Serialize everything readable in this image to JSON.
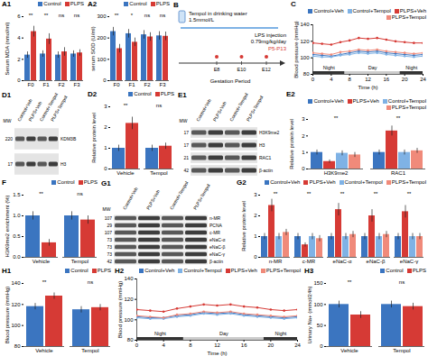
{
  "chart_data": [
    {
      "panel": "A1",
      "type": "bar",
      "y_label": "Serum MDA (nmol/ml)",
      "categories": [
        "F0",
        "F1",
        "F2",
        "F3"
      ],
      "series": [
        {
          "name": "Control",
          "color": "#3b75c0",
          "values": [
            2.4,
            2.5,
            2.4,
            2.5
          ],
          "errors": [
            0.3,
            0.3,
            0.3,
            0.3
          ]
        },
        {
          "name": "PLPS",
          "color": "#d63a35",
          "values": [
            4.6,
            3.9,
            2.7,
            2.6
          ],
          "errors": [
            0.5,
            0.5,
            0.4,
            0.3
          ]
        }
      ],
      "significance": [
        "**",
        "**",
        "ns",
        "ns"
      ],
      "ylim": [
        0,
        6
      ],
      "yticks": [
        0,
        2,
        4,
        6
      ],
      "legend": "top-right"
    },
    {
      "panel": "A2",
      "type": "bar",
      "y_label": "serum SOD (U/ml)",
      "categories": [
        "F0",
        "F1",
        "F2",
        "F3"
      ],
      "series": [
        {
          "name": "Control",
          "color": "#3b75c0",
          "values": [
            230,
            220,
            215,
            210
          ],
          "errors": [
            20,
            20,
            20,
            20
          ]
        },
        {
          "name": "PLPS",
          "color": "#d63a35",
          "values": [
            150,
            180,
            205,
            208
          ],
          "errors": [
            20,
            20,
            20,
            20
          ]
        }
      ],
      "significance": [
        "**",
        "*",
        "ns",
        "ns"
      ],
      "ylim": [
        0,
        300
      ],
      "yticks": [
        0,
        100,
        200,
        300
      ],
      "legend": "top-right"
    },
    {
      "panel": "C",
      "type": "line",
      "y_label": "Blood pressure (mmHg)",
      "x_label": "Time (h)",
      "x": [
        0,
        2,
        4,
        6,
        8,
        10,
        12,
        14,
        16,
        18,
        20,
        22,
        24
      ],
      "series": [
        {
          "name": "Control+Veh",
          "color": "#3b75c0",
          "values": [
            104,
            103,
            102,
            104,
            106,
            108,
            107,
            108,
            106,
            105,
            104,
            103,
            104
          ]
        },
        {
          "name": "Control+Tempol",
          "color": "#7fb2e5",
          "values": [
            102,
            101,
            101,
            103,
            104,
            106,
            105,
            106,
            104,
            103,
            102,
            101,
            102
          ]
        },
        {
          "name": "PLPS+Veh",
          "color": "#d63a35",
          "values": [
            118,
            117,
            116,
            119,
            121,
            124,
            123,
            124,
            122,
            120,
            119,
            118,
            118
          ]
        },
        {
          "name": "PLPS+Tempol",
          "color": "#f08a7a",
          "values": [
            106,
            105,
            104,
            107,
            108,
            110,
            109,
            110,
            108,
            107,
            106,
            105,
            106
          ]
        }
      ],
      "periods": [
        {
          "label": "Night",
          "from": 0,
          "to": 7
        },
        {
          "label": "Day",
          "from": 7,
          "to": 19
        },
        {
          "label": "Night",
          "from": 19,
          "to": 24
        }
      ],
      "xlim": [
        0,
        24
      ],
      "xticks": [
        0,
        4,
        8,
        12,
        16,
        20,
        24
      ],
      "ylim": [
        80,
        140
      ],
      "yticks": [
        80,
        100,
        120,
        140
      ],
      "marker": "circle",
      "legend": "top"
    },
    {
      "panel": "D2",
      "type": "bar",
      "y_label": "Relative protein level",
      "categories": [
        "Vehicle",
        "Tempol"
      ],
      "series": [
        {
          "name": "Control",
          "color": "#3b75c0",
          "values": [
            1.0,
            1.0
          ],
          "errors": [
            0.15,
            0.15
          ]
        },
        {
          "name": "PLPS",
          "color": "#d63a35",
          "values": [
            2.2,
            1.1
          ],
          "errors": [
            0.3,
            0.15
          ]
        }
      ],
      "significance": [
        "**",
        "ns"
      ],
      "ylim": [
        0,
        3
      ],
      "yticks": [
        0,
        1,
        2,
        3
      ],
      "legend": "top-right"
    },
    {
      "panel": "E2",
      "type": "bar",
      "y_label": "Relative protein level",
      "categories": [
        "H3K9me2",
        "RAC1"
      ],
      "series": [
        {
          "name": "Control+Veh",
          "color": "#3b75c0",
          "values": [
            1.0,
            1.0
          ],
          "errors": [
            0.15,
            0.15
          ]
        },
        {
          "name": "PLPS+Veh",
          "color": "#d63a35",
          "values": [
            0.45,
            2.3
          ],
          "errors": [
            0.1,
            0.3
          ]
        },
        {
          "name": "Control+Tempol",
          "color": "#7fb2e5",
          "values": [
            0.95,
            1.0
          ],
          "errors": [
            0.15,
            0.15
          ]
        },
        {
          "name": "PLPS+Tempol",
          "color": "#f08a7a",
          "values": [
            0.85,
            1.1
          ],
          "errors": [
            0.15,
            0.15
          ]
        }
      ],
      "significance": [
        "**",
        "**"
      ],
      "ylim": [
        0,
        3
      ],
      "yticks": [
        0,
        1,
        2,
        3
      ],
      "legend": "top-right"
    },
    {
      "panel": "F",
      "type": "bar",
      "y_label": "H3K9me2 enrichment (%)",
      "categories": [
        "Vehicle",
        "Tempol"
      ],
      "series": [
        {
          "name": "Control",
          "color": "#3b75c0",
          "values": [
            1.0,
            1.0
          ],
          "errors": [
            0.1,
            0.1
          ]
        },
        {
          "name": "PLPS",
          "color": "#d63a35",
          "values": [
            0.35,
            0.9
          ],
          "errors": [
            0.08,
            0.1
          ]
        }
      ],
      "significance": [
        "**",
        "ns"
      ],
      "ylim": [
        0,
        1.5
      ],
      "yticks": [
        {
          "value": 0,
          "label": "0.0"
        },
        {
          "value": 0.5,
          "label": "0.5"
        },
        {
          "value": 1,
          "label": "1.0"
        },
        {
          "value": 1.5,
          "label": "1.5"
        }
      ],
      "legend": "top-right"
    },
    {
      "panel": "G2",
      "type": "bar",
      "y_label": "Relative protein level",
      "categories": [
        "n-MR",
        "c-MR",
        "eNaC-α",
        "eNaC-β",
        "eNaC-γ"
      ],
      "series": [
        {
          "name": "Control+Veh",
          "color": "#3b75c0",
          "values": [
            1.0,
            1.0,
            1.0,
            1.0,
            1.0
          ],
          "errors": [
            0.15,
            0.15,
            0.15,
            0.15,
            0.15
          ]
        },
        {
          "name": "PLPS+Veh",
          "color": "#d63a35",
          "values": [
            2.5,
            0.6,
            2.3,
            2.0,
            2.2
          ],
          "errors": [
            0.3,
            0.1,
            0.3,
            0.3,
            0.3
          ]
        },
        {
          "name": "Control+Tempol",
          "color": "#7fb2e5",
          "values": [
            1.0,
            1.0,
            1.0,
            1.0,
            1.0
          ],
          "errors": [
            0.15,
            0.15,
            0.15,
            0.15,
            0.15
          ]
        },
        {
          "name": "PLPS+Tempol",
          "color": "#f08a7a",
          "values": [
            1.2,
            0.9,
            1.1,
            1.1,
            1.0
          ],
          "errors": [
            0.15,
            0.15,
            0.15,
            0.15,
            0.15
          ]
        }
      ],
      "significance": [
        "**",
        "**",
        "**",
        "**",
        "**"
      ],
      "ylim": [
        0,
        3
      ],
      "yticks": [
        0,
        1,
        2,
        3
      ],
      "legend": "top-right"
    },
    {
      "panel": "H1",
      "type": "bar",
      "y_label": "Blood pressure (mmHg)",
      "categories": [
        "Vehicle",
        "Tempol"
      ],
      "series": [
        {
          "name": "Control",
          "color": "#3b75c0",
          "values": [
            118,
            115
          ],
          "errors": [
            3,
            3
          ]
        },
        {
          "name": "PLPS",
          "color": "#d63a35",
          "values": [
            128,
            117
          ],
          "errors": [
            3,
            3
          ]
        }
      ],
      "significance": [
        "**",
        "ns"
      ],
      "ylim": [
        80,
        140
      ],
      "yticks": [
        80,
        100,
        120,
        140
      ],
      "legend": "top-right"
    },
    {
      "panel": "H2",
      "type": "line",
      "y_label": "Blood pressure (mmHg)",
      "x_label": "Time (h)",
      "x": [
        0,
        2,
        4,
        6,
        8,
        10,
        12,
        14,
        16,
        18,
        20,
        22,
        24
      ],
      "series": [
        {
          "name": "Control+Veh",
          "color": "#3b75c0",
          "values": [
            103,
            102,
            102,
            104,
            105,
            107,
            106,
            107,
            105,
            104,
            103,
            102,
            103
          ]
        },
        {
          "name": "Control+Tempol",
          "color": "#7fb2e5",
          "values": [
            102,
            101,
            101,
            103,
            104,
            106,
            105,
            106,
            104,
            103,
            102,
            101,
            102
          ]
        },
        {
          "name": "PLPS+Veh",
          "color": "#d63a35",
          "values": [
            110,
            109,
            108,
            111,
            113,
            115,
            114,
            115,
            113,
            112,
            110,
            109,
            110
          ]
        },
        {
          "name": "PLPS+Tempol",
          "color": "#f08a7a",
          "values": [
            104,
            103,
            102,
            105,
            106,
            108,
            107,
            108,
            106,
            105,
            104,
            103,
            104
          ]
        }
      ],
      "periods": [
        {
          "label": "Night",
          "from": 0,
          "to": 7
        },
        {
          "label": "Day",
          "from": 7,
          "to": 19
        },
        {
          "label": "Night",
          "from": 19,
          "to": 24
        }
      ],
      "xlim": [
        0,
        24
      ],
      "xticks": [
        0,
        4,
        8,
        12,
        16,
        20,
        24
      ],
      "ylim": [
        80,
        140
      ],
      "yticks": [
        80,
        100,
        120,
        140
      ],
      "marker": "circle",
      "legend": "top"
    },
    {
      "panel": "H3",
      "type": "bar",
      "y_label": "Urinary Na+ (mmol/24h)",
      "categories": [
        "Vehicle",
        "Tempol"
      ],
      "series": [
        {
          "name": "Control",
          "color": "#3b75c0",
          "values": [
            100,
            100
          ],
          "errors": [
            8,
            8
          ]
        },
        {
          "name": "PLPS",
          "color": "#d63a35",
          "values": [
            75,
            95
          ],
          "errors": [
            8,
            8
          ]
        }
      ],
      "significance": [
        "**",
        "ns"
      ],
      "ylim": [
        0,
        150
      ],
      "yticks": [
        0,
        50,
        100,
        150
      ],
      "legend": "top-right"
    }
  ],
  "blots": [
    {
      "panel": "D1",
      "mw_header": "MW",
      "lanes": [
        "Control+Veh",
        "PLPS+Veh",
        "Control+Tempol",
        "PLPS+Tempol"
      ],
      "rows": [
        {
          "mw": 220,
          "label": "KDM3B"
        },
        {
          "mw": 17,
          "label": "H3"
        }
      ]
    },
    {
      "panel": "E1",
      "mw_header": "MW",
      "lanes": [
        "Control+Veh",
        "PLPS+Veh",
        "Control+Tempol",
        "PLPS+Tempol"
      ],
      "rows": [
        {
          "mw": 17,
          "label": "H3K9me2"
        },
        {
          "mw": 17,
          "label": "H3"
        },
        {
          "mw": 21,
          "label": "RAC1"
        },
        {
          "mw": 42,
          "label": "β-actin"
        }
      ]
    },
    {
      "panel": "G1",
      "mw_header": "MW",
      "lanes": [
        "Control+Veh",
        "PLPS+Veh",
        "Control+Tempol",
        "PLPS+Tempol"
      ],
      "rows": [
        {
          "mw": 107,
          "label": "n-MR"
        },
        {
          "mw": 29,
          "label": "PCNA"
        },
        {
          "mw": 107,
          "label": "c-MR"
        },
        {
          "mw": 73,
          "label": "eNaC-α"
        },
        {
          "mw": 73,
          "label": "eNaC-β"
        },
        {
          "mw": 73,
          "label": "eNaC-γ"
        },
        {
          "mw": 42,
          "label": "β-actin"
        }
      ]
    }
  ],
  "schematic": {
    "panel": "B",
    "drug": "Tempol in drinking water",
    "dose": "1.5mmol/L",
    "injection": "LPS injection",
    "injection_dose": "0.79mg/kg/day",
    "window": "P5-P13",
    "period": "Gestation Period",
    "timeline": [
      "E8",
      "E10",
      "E12"
    ]
  }
}
